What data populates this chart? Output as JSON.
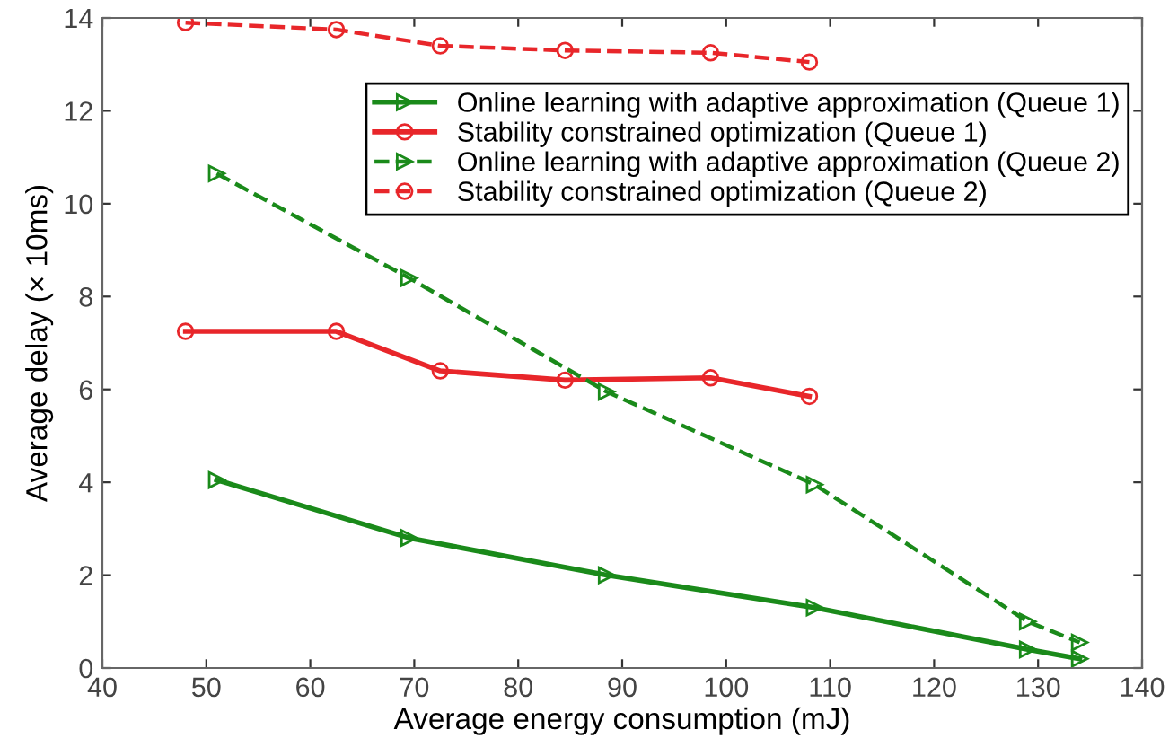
{
  "chart_data": {
    "type": "line",
    "xlabel": "Average energy consumption (mJ)",
    "ylabel": "Average delay (× 10ms)",
    "xlim": [
      40,
      140
    ],
    "xticks": [
      40,
      50,
      60,
      70,
      80,
      90,
      100,
      110,
      120,
      130,
      140
    ],
    "ylim": [
      0,
      14
    ],
    "yticks": [
      0,
      2,
      4,
      6,
      8,
      10,
      12,
      14
    ],
    "grid": false,
    "legend": "top right",
    "series": [
      {
        "name": "Online learning with adaptive approximation (Queue 1)",
        "color": "#1a8a1a",
        "marker": "triangle",
        "line_style": "solid",
        "x": [
          51,
          69.5,
          88.5,
          108.5,
          129,
          134
        ],
        "values": [
          4.05,
          2.8,
          2.0,
          1.3,
          0.4,
          0.2
        ]
      },
      {
        "name": "Stability constrained optimization (Queue 1)",
        "color": "#e8262a",
        "marker": "circle",
        "line_style": "solid",
        "x": [
          48,
          62.5,
          72.5,
          84.5,
          98.5,
          108
        ],
        "values": [
          7.25,
          7.25,
          6.4,
          6.2,
          6.25,
          5.85
        ]
      },
      {
        "name": "Online learning with adaptive approximation (Queue 2)",
        "color": "#1a8a1a",
        "marker": "triangle",
        "line_style": "dashed",
        "x": [
          51,
          69.5,
          88.5,
          108.5,
          129,
          134
        ],
        "values": [
          10.65,
          8.4,
          5.95,
          3.95,
          1.0,
          0.55
        ]
      },
      {
        "name": "Stability constrained optimization (Queue 2)",
        "color": "#e8262a",
        "marker": "circle",
        "line_style": "dashed",
        "x": [
          48,
          62.5,
          72.5,
          84.5,
          98.5,
          108
        ],
        "values": [
          13.9,
          13.75,
          13.4,
          13.3,
          13.25,
          13.05
        ]
      }
    ]
  }
}
